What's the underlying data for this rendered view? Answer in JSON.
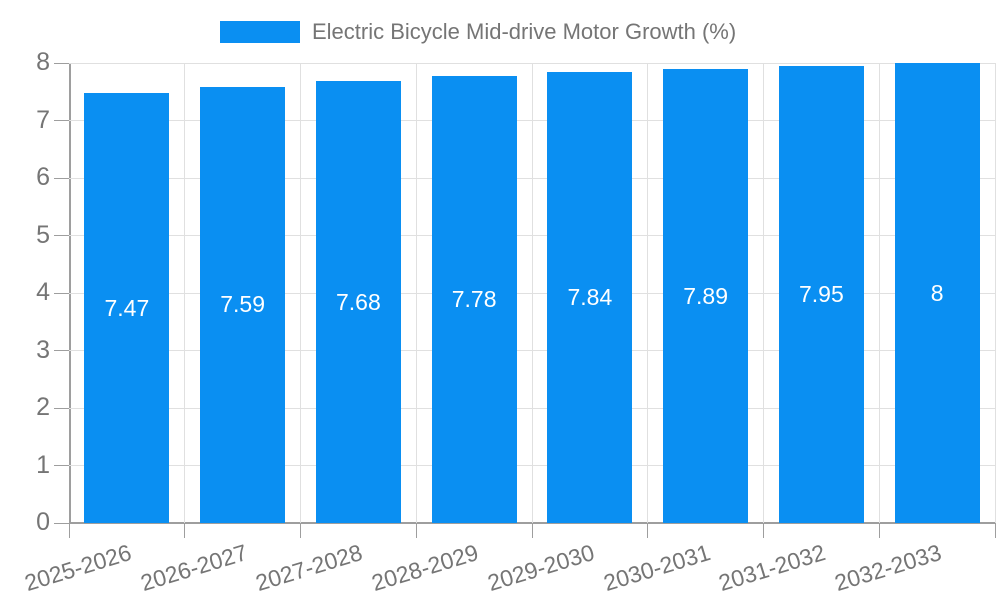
{
  "chart_data": {
    "type": "bar",
    "title": "Electric Bicycle Mid-drive Motor Growth (%)",
    "legend_label": "Electric Bicycle Mid-drive Motor Growth (%)",
    "legend_position": "top",
    "categories": [
      "2025-2026",
      "2026-2027",
      "2027-2028",
      "2028-2029",
      "2029-2030",
      "2030-2031",
      "2031-2032",
      "2032-2033"
    ],
    "values": [
      7.47,
      7.59,
      7.68,
      7.78,
      7.84,
      7.89,
      7.95,
      8
    ],
    "value_labels": [
      "7.47",
      "7.59",
      "7.68",
      "7.78",
      "7.84",
      "7.89",
      "7.95",
      "8"
    ],
    "xlabel": "",
    "ylabel": "",
    "ylim": [
      0,
      8
    ],
    "yticks": [
      "0",
      "1",
      "2",
      "3",
      "4",
      "5",
      "6",
      "7",
      "8"
    ],
    "grid": true,
    "x_label_rotation_deg": -17,
    "colors": {
      "bar": "#0a8ff2",
      "gridline": "#e0e0e0",
      "axis": "#9e9e9e",
      "tick_label": "#757575",
      "value_label": "#ffffff",
      "background": "#ffffff"
    }
  }
}
